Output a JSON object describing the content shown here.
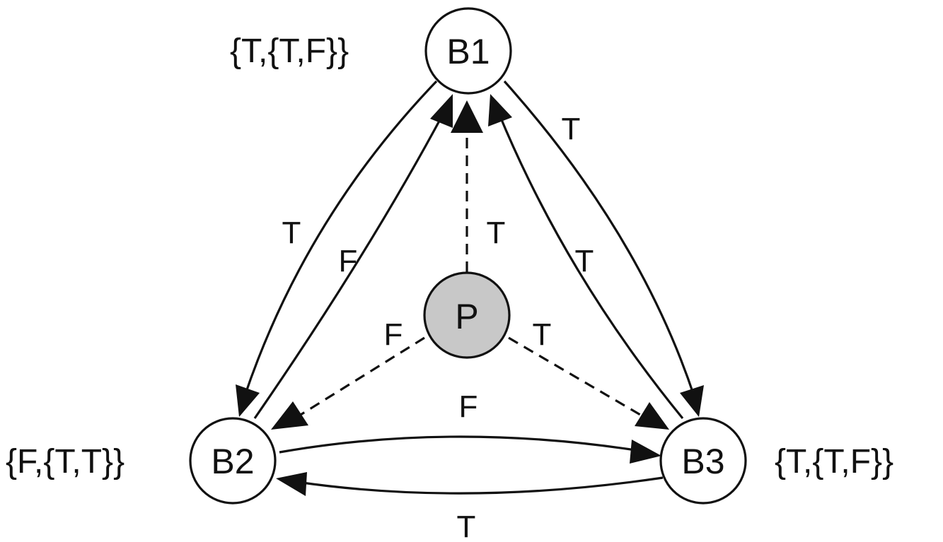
{
  "colors": {
    "stroke": "#111111",
    "node_fill": "#ffffff",
    "proposer_fill": "#c8c8c8",
    "background": "#ffffff"
  },
  "nodes": {
    "b1": {
      "label": "B1",
      "set": "{T,{T,F}}"
    },
    "b2": {
      "label": "B2",
      "set": "{F,{T,T}}"
    },
    "b3": {
      "label": "B3",
      "set": "{T,{T,F}}"
    },
    "p": {
      "label": "P"
    }
  },
  "edges": {
    "b1_to_b2": {
      "from": "B1",
      "to": "B2",
      "label": "T",
      "style": "solid"
    },
    "b2_to_b1": {
      "from": "B2",
      "to": "B1",
      "label": "F",
      "style": "solid"
    },
    "p_to_b1": {
      "from": "P",
      "to": "B1",
      "label": "T",
      "style": "dashed"
    },
    "b3_to_b1": {
      "from": "B3",
      "to": "B1",
      "label": "T",
      "style": "solid"
    },
    "b1_to_b3": {
      "from": "B1",
      "to": "B3",
      "label": "T",
      "style": "solid"
    },
    "p_to_b2": {
      "from": "P",
      "to": "B2",
      "label": "F",
      "style": "dashed"
    },
    "p_to_b3": {
      "from": "P",
      "to": "B3",
      "label": "T",
      "style": "dashed"
    },
    "b2_to_b3": {
      "from": "B2",
      "to": "B3",
      "label": "F",
      "style": "solid"
    },
    "b3_to_b2": {
      "from": "B3",
      "to": "B2",
      "label": "T",
      "style": "solid"
    }
  }
}
